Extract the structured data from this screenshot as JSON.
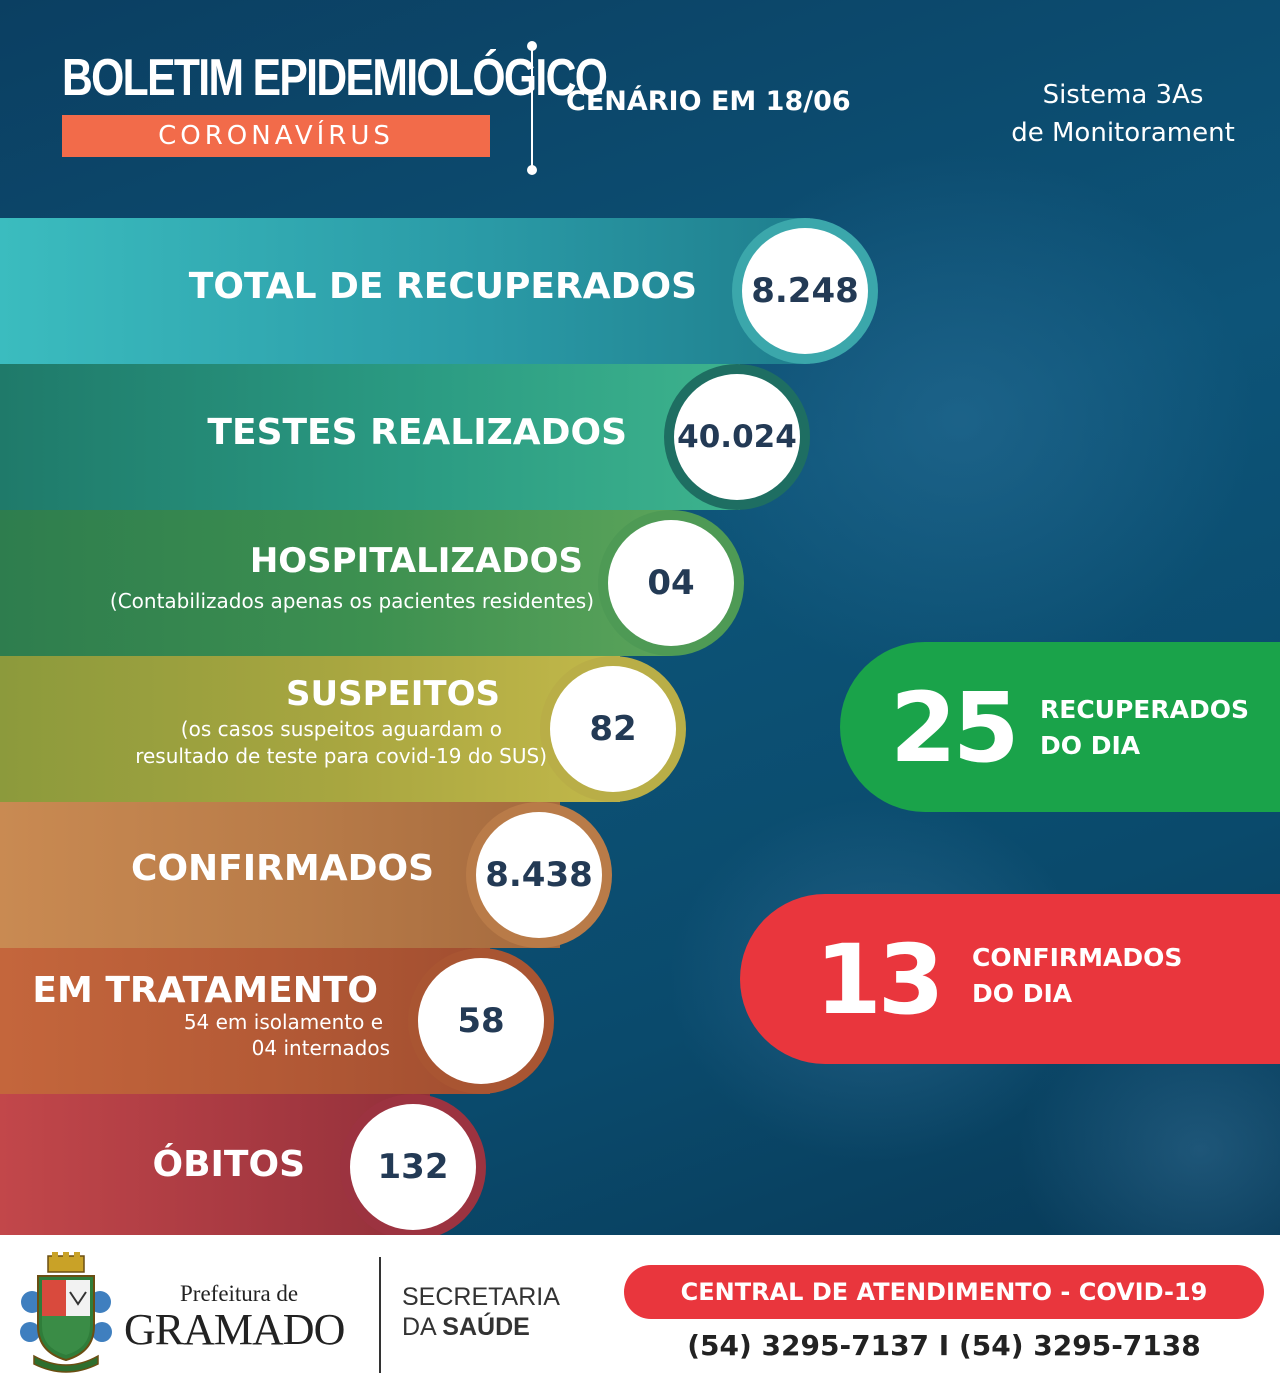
{
  "header": {
    "title": "BOLETIM EPIDEMIOLÓGICO",
    "subtitle": "CORONAVÍRUS",
    "scenario": "CENÁRIO EM 18/06",
    "system_line1": "Sistema 3As",
    "system_line2": "de Monitorament"
  },
  "stats": [
    {
      "label": "TOTAL DE RECUPERADOS",
      "value": "8.248"
    },
    {
      "label": "TESTES REALIZADOS",
      "value": "40.024"
    },
    {
      "label": "HOSPITALIZADOS",
      "note1": "(Contabilizados apenas os pacientes residentes)",
      "value": "04"
    },
    {
      "label": "SUSPEITOS",
      "note1": "(os casos suspeitos aguardam o",
      "note2": "resultado de teste para covid-19 do SUS)",
      "value": "82"
    },
    {
      "label": "CONFIRMADOS",
      "value": "8.438"
    },
    {
      "label": "EM TRATAMENTO",
      "note1": "54 em isolamento e",
      "note2": "04 internados",
      "value": "58"
    },
    {
      "label": "ÓBITOS",
      "value": "132"
    }
  ],
  "daily": {
    "recovered": {
      "value": "25",
      "line1": "RECUPERADOS",
      "line2": "DO DIA"
    },
    "confirmed": {
      "value": "13",
      "line1": "CONFIRMADOS",
      "line2": "DO DIA"
    }
  },
  "footer": {
    "prefeitura_small": "Prefeitura de",
    "prefeitura_big": "GRAMADO",
    "secretaria_line1": "SECRETARIA",
    "secretaria_line2_a": "DA ",
    "secretaria_line2_b": "SAÚDE",
    "central": "CENTRAL DE ATENDIMENTO - COVID-19",
    "phones": "(54) 3295-7137 I (54) 3295-7138"
  },
  "colors": {
    "background": "#0d5478",
    "subtitle_bar": "#f26b4a",
    "recovered_badge": "#1aa34a",
    "confirmed_badge": "#e9363d",
    "circle_text": "#233a55"
  }
}
